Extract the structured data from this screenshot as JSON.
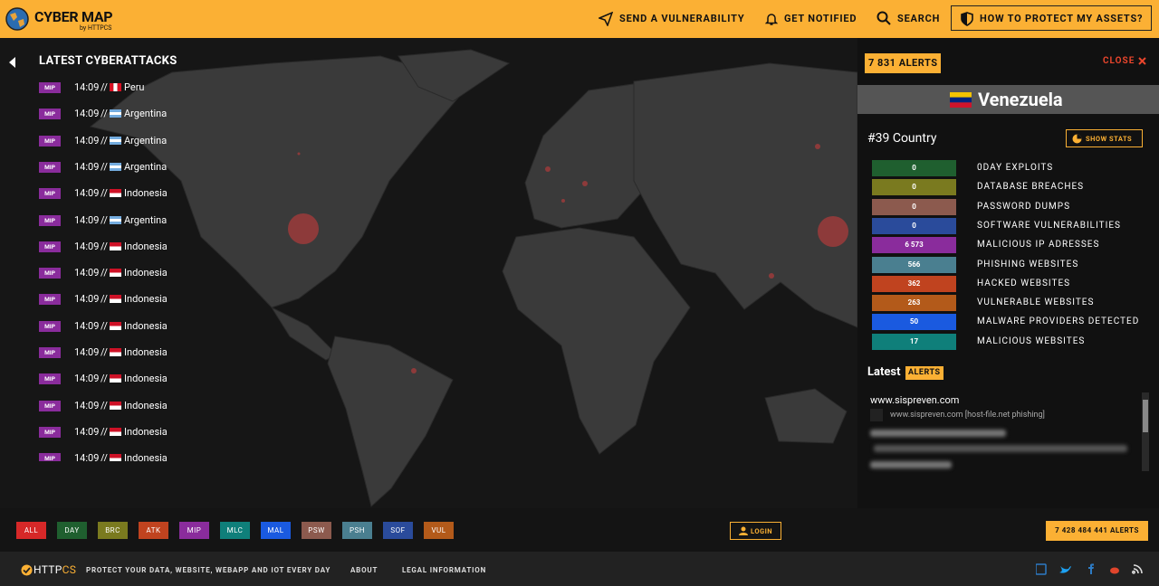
{
  "header": {
    "title": "CYBER MAP",
    "subtitle": "by HTTPCS",
    "nav": [
      "SEND A VULNERABILITY",
      "GET NOTIFIED",
      "SEARCH"
    ],
    "cta": "HOW TO PROTECT MY ASSETS?"
  },
  "attacks": {
    "title": "LATEST CYBERATTACKS",
    "separator": "//",
    "tag_color": "#8a2c9c",
    "items": [
      {
        "tag": "MIP",
        "time": "14:09",
        "country": "Peru",
        "flag": {
          "stripes": [
            "#d91023",
            "#ffffff",
            "#d91023"
          ],
          "vertical": true
        }
      },
      {
        "tag": "MIP",
        "time": "14:09",
        "country": "Argentina",
        "flag": {
          "stripes": [
            "#74acdf",
            "#ffffff",
            "#74acdf"
          ],
          "vertical": false
        }
      },
      {
        "tag": "MIP",
        "time": "14:09",
        "country": "Argentina",
        "flag": {
          "stripes": [
            "#74acdf",
            "#ffffff",
            "#74acdf"
          ],
          "vertical": false
        }
      },
      {
        "tag": "MIP",
        "time": "14:09",
        "country": "Argentina",
        "flag": {
          "stripes": [
            "#74acdf",
            "#ffffff",
            "#74acdf"
          ],
          "vertical": false
        }
      },
      {
        "tag": "MIP",
        "time": "14:09",
        "country": "Indonesia",
        "flag": {
          "stripes": [
            "#ce1126",
            "#ffffff"
          ],
          "vertical": false
        }
      },
      {
        "tag": "MIP",
        "time": "14:09",
        "country": "Argentina",
        "flag": {
          "stripes": [
            "#74acdf",
            "#ffffff",
            "#74acdf"
          ],
          "vertical": false
        }
      },
      {
        "tag": "MIP",
        "time": "14:09",
        "country": "Indonesia",
        "flag": {
          "stripes": [
            "#ce1126",
            "#ffffff"
          ],
          "vertical": false
        }
      },
      {
        "tag": "MIP",
        "time": "14:09",
        "country": "Indonesia",
        "flag": {
          "stripes": [
            "#ce1126",
            "#ffffff"
          ],
          "vertical": false
        }
      },
      {
        "tag": "MIP",
        "time": "14:09",
        "country": "Indonesia",
        "flag": {
          "stripes": [
            "#ce1126",
            "#ffffff"
          ],
          "vertical": false
        }
      },
      {
        "tag": "MIP",
        "time": "14:09",
        "country": "Indonesia",
        "flag": {
          "stripes": [
            "#ce1126",
            "#ffffff"
          ],
          "vertical": false
        }
      },
      {
        "tag": "MIP",
        "time": "14:09",
        "country": "Indonesia",
        "flag": {
          "stripes": [
            "#ce1126",
            "#ffffff"
          ],
          "vertical": false
        }
      },
      {
        "tag": "MIP",
        "time": "14:09",
        "country": "Indonesia",
        "flag": {
          "stripes": [
            "#ce1126",
            "#ffffff"
          ],
          "vertical": false
        }
      },
      {
        "tag": "MIP",
        "time": "14:09",
        "country": "Indonesia",
        "flag": {
          "stripes": [
            "#ce1126",
            "#ffffff"
          ],
          "vertical": false
        }
      },
      {
        "tag": "MIP",
        "time": "14:09",
        "country": "Indonesia",
        "flag": {
          "stripes": [
            "#ce1126",
            "#ffffff"
          ],
          "vertical": false
        }
      },
      {
        "tag": "MIP",
        "time": "14:09",
        "country": "Indonesia",
        "flag": {
          "stripes": [
            "#ce1126",
            "#ffffff"
          ],
          "vertical": false
        }
      }
    ]
  },
  "country_panel": {
    "alerts": "7 831 ALERTS",
    "close": "CLOSE",
    "country": "Venezuela",
    "flag": {
      "stripes": [
        "#f4c300",
        "#00247d",
        "#cf142b"
      ],
      "vertical": false
    },
    "rank": "#39 Country",
    "show_stats": "SHOW STATS",
    "stats": [
      {
        "value": "0",
        "label": "0DAY EXPLOITS",
        "color": "#1f5f2f"
      },
      {
        "value": "0",
        "label": "DATABASE BREACHES",
        "color": "#7a7a1f"
      },
      {
        "value": "0",
        "label": "PASSWORD DUMPS",
        "color": "#8c5a4e"
      },
      {
        "value": "0",
        "label": "SOFTWARE VULNERABILITIES",
        "color": "#2a4b9b"
      },
      {
        "value": "6 573",
        "label": "MALICIOUS IP ADRESSES",
        "color": "#8a2c9c"
      },
      {
        "value": "566",
        "label": "PHISHING WEBSITES",
        "color": "#4a7f90"
      },
      {
        "value": "362",
        "label": "HACKED WEBSITES",
        "color": "#c0431f"
      },
      {
        "value": "263",
        "label": "VULNERABLE WEBSITES",
        "color": "#b35a1a"
      },
      {
        "value": "50",
        "label": "MALWARE PROVIDERS DETECTED",
        "color": "#1a5ae0"
      },
      {
        "value": "17",
        "label": "MALICIOUS WEBSITES",
        "color": "#0f7f7a"
      }
    ],
    "latest": "Latest",
    "latest_badge": "ALERTS",
    "feed": {
      "site": "www.sispreven.com",
      "entry": "www.sispreven.com [host-file.net phishing]"
    }
  },
  "filters": [
    {
      "label": "ALL",
      "color": "#d62828"
    },
    {
      "label": "DAY",
      "color": "#1f5f2f"
    },
    {
      "label": "BRC",
      "color": "#7a7a1f"
    },
    {
      "label": "ATK",
      "color": "#c0431f"
    },
    {
      "label": "MIP",
      "color": "#8a2c9c"
    },
    {
      "label": "MLC",
      "color": "#0f7f7a"
    },
    {
      "label": "MAL",
      "color": "#1a5ae0"
    },
    {
      "label": "PSW",
      "color": "#8c5a4e"
    },
    {
      "label": "PSH",
      "color": "#4a7f90"
    },
    {
      "label": "SOF",
      "color": "#2a4b9b"
    },
    {
      "label": "VUL",
      "color": "#b35a1a"
    }
  ],
  "login": "LOGIN",
  "total_alerts": "7 428 484 441 ALERTS",
  "footer": {
    "brand_a": "HTTP",
    "brand_b": "CS",
    "tagline": "PROTECT YOUR DATA, WEBSITE, WEBAPP AND IOT EVERY DAY",
    "links": [
      "ABOUT",
      "LEGAL INFORMATION"
    ]
  }
}
